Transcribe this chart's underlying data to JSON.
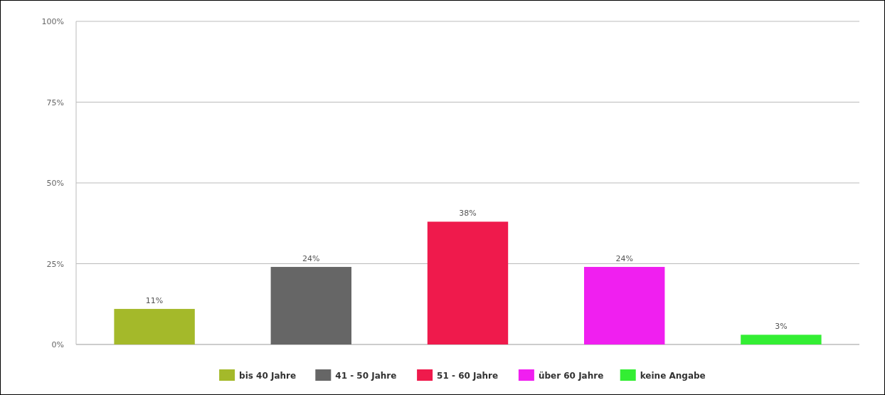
{
  "chart_data": {
    "type": "bar",
    "categories": [
      null,
      null,
      null,
      null,
      null
    ],
    "series": [
      {
        "name": "bis 40 Jahre",
        "color": "#a4b92a",
        "values": [
          11,
          null,
          null,
          null,
          null
        ],
        "value_labels": [
          "11%",
          null,
          null,
          null,
          null
        ]
      },
      {
        "name": "41 - 50 Jahre",
        "color": "#666666",
        "values": [
          null,
          24,
          null,
          null,
          null
        ],
        "value_labels": [
          null,
          "24%",
          null,
          null,
          null
        ]
      },
      {
        "name": "51 - 60 Jahre",
        "color": "#ef1a4c",
        "values": [
          null,
          null,
          38,
          null,
          null
        ],
        "value_labels": [
          null,
          null,
          "38%",
          null,
          null
        ]
      },
      {
        "name": "über 60 Jahre",
        "color": "#f01ff0",
        "values": [
          null,
          null,
          null,
          24,
          null
        ],
        "value_labels": [
          null,
          null,
          null,
          "24%",
          null
        ]
      },
      {
        "name": "keine Angabe",
        "color": "#33ee33",
        "values": [
          null,
          null,
          null,
          null,
          3
        ],
        "value_labels": [
          null,
          null,
          null,
          null,
          "3%"
        ]
      }
    ],
    "ylim": [
      0,
      100
    ],
    "yticks": [
      {
        "value": 0,
        "label": "0%"
      },
      {
        "value": 25,
        "label": "25%"
      },
      {
        "value": 50,
        "label": "50%"
      },
      {
        "value": 75,
        "label": "75%"
      },
      {
        "value": 100,
        "label": "100%"
      }
    ],
    "grid": "y",
    "legend": "bottom"
  }
}
